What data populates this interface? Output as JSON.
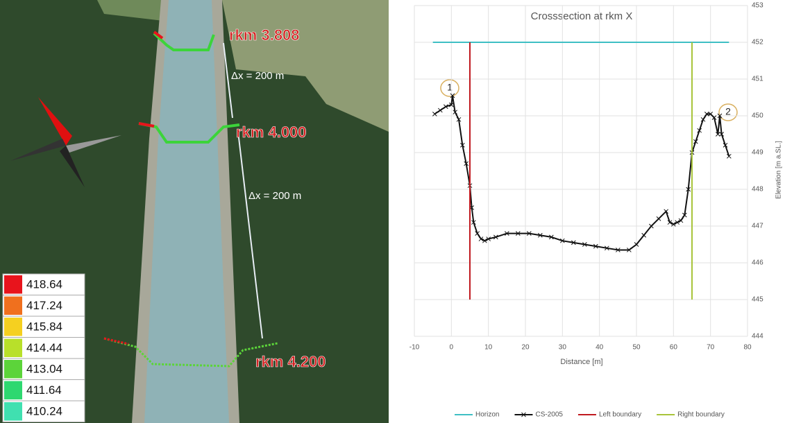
{
  "map": {
    "labels": [
      "rkm 3.808",
      "rkm 4.000",
      "rkm 4.200"
    ],
    "spacing": [
      "Δx = 200 m",
      "Δx = 200 m"
    ],
    "legend": [
      {
        "value": 418.64,
        "color": "#e8141c"
      },
      {
        "value": 417.24,
        "color": "#f0701e"
      },
      {
        "value": 415.84,
        "color": "#f5d020"
      },
      {
        "value": 414.44,
        "color": "#b8e02a"
      },
      {
        "value": 413.04,
        "color": "#5cd43a"
      },
      {
        "value": 411.64,
        "color": "#2ed870"
      },
      {
        "value": 410.24,
        "color": "#40e0b0"
      }
    ]
  },
  "chart_data": {
    "type": "line",
    "title": "Crosssection at rkm X",
    "x_label": "Distance [m]",
    "y_label": "Elevation [m a.SL.]",
    "xlim": [
      -10,
      80
    ],
    "xticks": [
      -10,
      0,
      10,
      20,
      30,
      40,
      50,
      60,
      70,
      80
    ],
    "ylim": [
      444,
      453
    ],
    "yticks": [
      444,
      445,
      446,
      447,
      448,
      449,
      450,
      451,
      452,
      453
    ],
    "grid": true,
    "legend": "bottom",
    "annotations": [
      "1",
      "2"
    ],
    "series": [
      {
        "name": "Horizon",
        "color": "#3fbfc4",
        "x": [
          -5,
          75
        ],
        "values": [
          452,
          452
        ]
      },
      {
        "name": "CS-2005",
        "color": "#111111",
        "marker": "x",
        "x": [
          -4.5,
          -3,
          -1.5,
          0,
          0.3,
          1,
          2,
          3,
          4,
          5,
          5.5,
          6,
          7,
          8,
          9,
          10,
          12,
          15,
          18,
          21,
          24,
          27,
          30,
          33,
          36,
          39,
          42,
          45,
          48,
          50,
          52,
          54,
          56,
          58,
          59,
          60,
          61,
          62,
          63,
          64,
          65,
          66,
          67,
          68,
          69,
          70,
          71,
          72,
          72.5,
          73,
          74,
          75
        ],
        "values": [
          450.05,
          450.15,
          450.25,
          450.3,
          450.55,
          450.1,
          449.9,
          449.2,
          448.7,
          448.1,
          447.5,
          447.1,
          446.8,
          446.65,
          446.6,
          446.65,
          446.7,
          446.8,
          446.8,
          446.8,
          446.75,
          446.7,
          446.6,
          446.55,
          446.5,
          446.45,
          446.4,
          446.35,
          446.35,
          446.5,
          446.75,
          447,
          447.2,
          447.4,
          447.1,
          447.05,
          447.1,
          447.15,
          447.3,
          448,
          449,
          449.3,
          449.6,
          449.9,
          450.05,
          450.05,
          449.95,
          449.5,
          450,
          449.5,
          449.2,
          448.9
        ]
      },
      {
        "name": "Left boundary",
        "color": "#c0191f",
        "x": [
          5,
          5
        ],
        "values": [
          445,
          452
        ]
      },
      {
        "name": "Right boundary",
        "color": "#a8c43a",
        "x": [
          65,
          65
        ],
        "values": [
          445,
          452
        ]
      }
    ]
  }
}
